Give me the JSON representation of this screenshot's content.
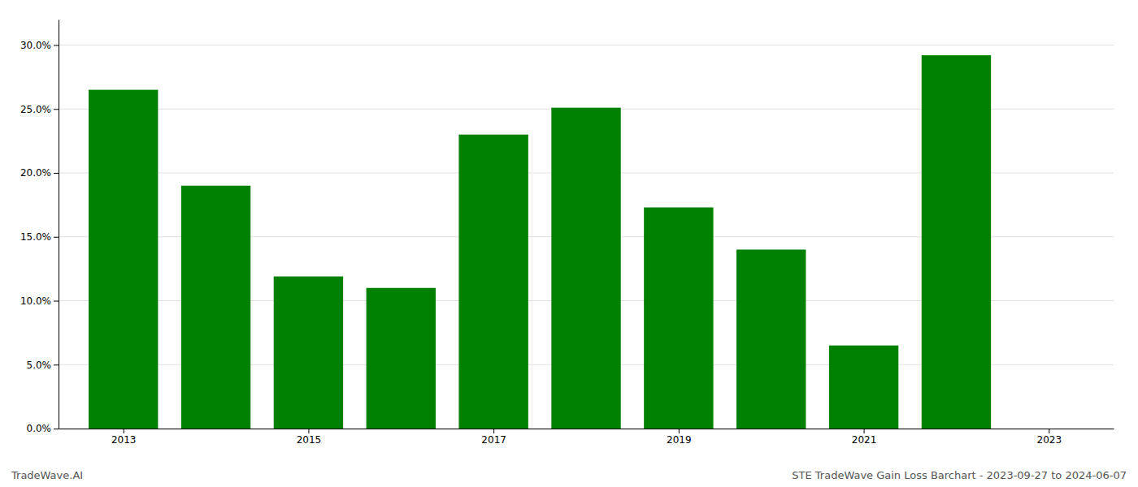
{
  "chart_data": {
    "type": "bar",
    "x": [
      2013,
      2014,
      2015,
      2016,
      2017,
      2018,
      2019,
      2020,
      2021,
      2022
    ],
    "values": [
      0.265,
      0.19,
      0.119,
      0.11,
      0.23,
      0.251,
      0.173,
      0.14,
      0.065,
      0.292
    ],
    "color": "#008000",
    "xlim": [
      2012.3,
      2023.7
    ],
    "xticks": [
      2013,
      2015,
      2017,
      2019,
      2021,
      2023
    ],
    "ylim": [
      0,
      0.32
    ],
    "yticks": [
      {
        "value": 0.0,
        "label": "0.0%"
      },
      {
        "value": 0.05,
        "label": "5.0%"
      },
      {
        "value": 0.1,
        "label": "10.0%"
      },
      {
        "value": 0.15,
        "label": "15.0%"
      },
      {
        "value": 0.2,
        "label": "20.0%"
      },
      {
        "value": 0.25,
        "label": "25.0%"
      },
      {
        "value": 0.3,
        "label": "30.0%"
      }
    ],
    "grid": true,
    "annotations": [
      "TradeWave.AI",
      "STE TradeWave Gain Loss Barchart - 2023-09-27 to 2024-06-07"
    ]
  }
}
